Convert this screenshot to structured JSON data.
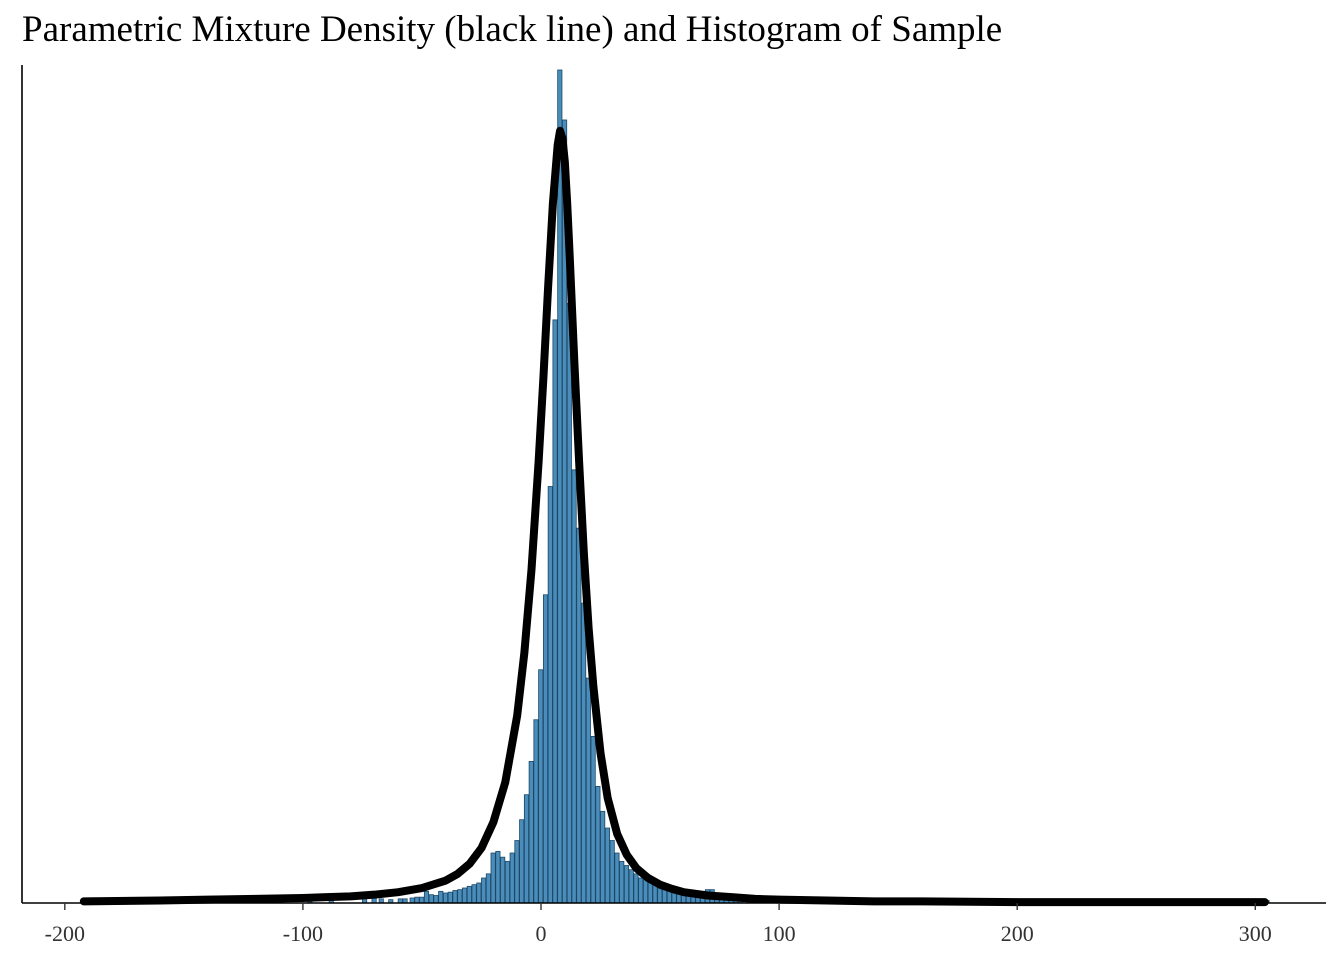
{
  "chart_data": {
    "type": "bar",
    "title": "Parametric Mixture Density (black line) and Histogram of Sample",
    "xlabel": "",
    "ylabel": "",
    "xlim": [
      -200,
      310
    ],
    "ylim": [
      0,
      1.0
    ],
    "x_ticks": [
      -200,
      -100,
      0,
      100,
      200,
      300
    ],
    "x_tick_labels": [
      "-200",
      "-100",
      "0",
      "100",
      "200",
      "300"
    ],
    "grid": false,
    "legend": "none",
    "colors": {
      "bar_fill": "#4a8dbb",
      "bar_stroke": "#1d4866",
      "density_line": "#000000",
      "axis": "#000000"
    },
    "histogram": {
      "bins": [
        [
          -192,
          0.002
        ],
        [
          -140,
          0.002
        ],
        [
          -110,
          0.003
        ],
        [
          -98,
          0.002
        ],
        [
          -89,
          0.006
        ],
        [
          -75,
          0.006
        ],
        [
          -71,
          0.006
        ],
        [
          -68,
          0.005
        ],
        [
          -64,
          0.004
        ],
        [
          -60,
          0.005
        ],
        [
          -58,
          0.005
        ],
        [
          -55,
          0.006
        ],
        [
          -53,
          0.007
        ],
        [
          -51,
          0.007
        ],
        [
          -49,
          0.014
        ],
        [
          -47,
          0.01
        ],
        [
          -45,
          0.009
        ],
        [
          -43,
          0.014
        ],
        [
          -41,
          0.012
        ],
        [
          -39,
          0.013
        ],
        [
          -37,
          0.015
        ],
        [
          -35,
          0.016
        ],
        [
          -33,
          0.018
        ],
        [
          -31,
          0.02
        ],
        [
          -29,
          0.022
        ],
        [
          -27,
          0.024
        ],
        [
          -25,
          0.03
        ],
        [
          -23,
          0.035
        ],
        [
          -21,
          0.06
        ],
        [
          -19,
          0.062
        ],
        [
          -17,
          0.055
        ],
        [
          -15,
          0.05
        ],
        [
          -13,
          0.06
        ],
        [
          -11,
          0.075
        ],
        [
          -9,
          0.1
        ],
        [
          -7,
          0.13
        ],
        [
          -5,
          0.17
        ],
        [
          -3,
          0.22
        ],
        [
          -1,
          0.28
        ],
        [
          1,
          0.37
        ],
        [
          3,
          0.5
        ],
        [
          5,
          0.7
        ],
        [
          7,
          1.0
        ],
        [
          9,
          0.94
        ],
        [
          11,
          0.72
        ],
        [
          13,
          0.52
        ],
        [
          15,
          0.45
        ],
        [
          17,
          0.36
        ],
        [
          19,
          0.27
        ],
        [
          21,
          0.2
        ],
        [
          23,
          0.14
        ],
        [
          25,
          0.11
        ],
        [
          27,
          0.09
        ],
        [
          29,
          0.075
        ],
        [
          31,
          0.06
        ],
        [
          33,
          0.05
        ],
        [
          35,
          0.045
        ],
        [
          37,
          0.04
        ],
        [
          39,
          0.035
        ],
        [
          41,
          0.03
        ],
        [
          43,
          0.035
        ],
        [
          45,
          0.03
        ],
        [
          47,
          0.025
        ],
        [
          49,
          0.02
        ],
        [
          51,
          0.018
        ],
        [
          53,
          0.016
        ],
        [
          55,
          0.014
        ],
        [
          57,
          0.012
        ],
        [
          59,
          0.01
        ],
        [
          61,
          0.009
        ],
        [
          63,
          0.008
        ],
        [
          65,
          0.008
        ],
        [
          67,
          0.007
        ],
        [
          69,
          0.016
        ],
        [
          71,
          0.016
        ],
        [
          73,
          0.007
        ],
        [
          75,
          0.006
        ],
        [
          77,
          0.005
        ],
        [
          79,
          0.004
        ],
        [
          81,
          0.004
        ],
        [
          83,
          0.004
        ],
        [
          86,
          0.003
        ],
        [
          90,
          0.003
        ],
        [
          95,
          0.003
        ],
        [
          118,
          0.004
        ],
        [
          140,
          0.002
        ],
        [
          170,
          0.002
        ],
        [
          250,
          0.001
        ],
        [
          304,
          0.003
        ]
      ],
      "bin_width": 1.8
    },
    "density": {
      "x": [
        -192,
        -160,
        -140,
        -120,
        -100,
        -90,
        -80,
        -70,
        -60,
        -50,
        -40,
        -35,
        -30,
        -25,
        -20,
        -15,
        -10,
        -7,
        -4,
        -1,
        1,
        3,
        5,
        7,
        8,
        9,
        10,
        11,
        12,
        14,
        16,
        18,
        20,
        22,
        25,
        28,
        32,
        36,
        40,
        45,
        50,
        55,
        60,
        70,
        80,
        90,
        100,
        120,
        140,
        160,
        200,
        250,
        304
      ],
      "y": [
        0.002,
        0.003,
        0.004,
        0.005,
        0.006,
        0.007,
        0.008,
        0.01,
        0.013,
        0.018,
        0.027,
        0.035,
        0.047,
        0.066,
        0.097,
        0.145,
        0.225,
        0.3,
        0.4,
        0.53,
        0.63,
        0.74,
        0.84,
        0.91,
        0.927,
        0.918,
        0.89,
        0.84,
        0.78,
        0.65,
        0.53,
        0.42,
        0.33,
        0.26,
        0.18,
        0.126,
        0.083,
        0.058,
        0.042,
        0.03,
        0.022,
        0.017,
        0.013,
        0.009,
        0.007,
        0.005,
        0.004,
        0.003,
        0.002,
        0.002,
        0.001,
        0.001,
        0.001
      ]
    }
  }
}
